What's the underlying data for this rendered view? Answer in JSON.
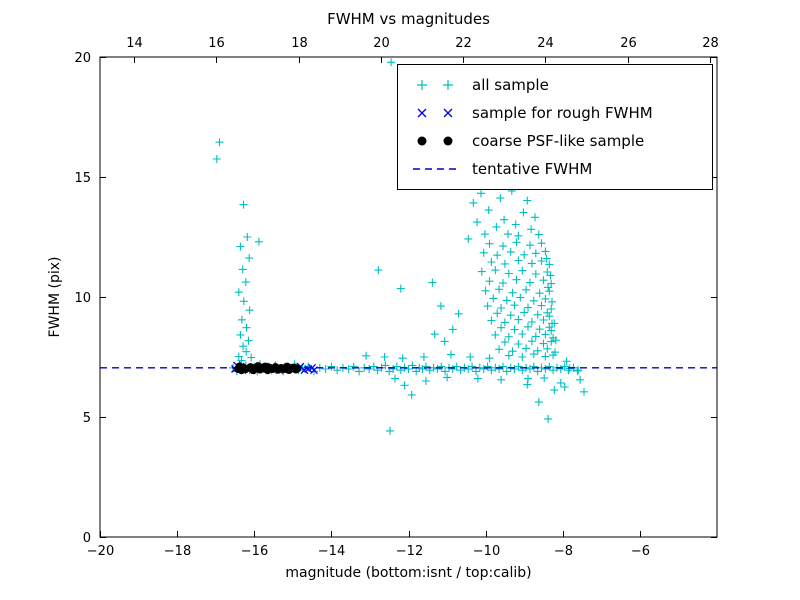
{
  "chart_data": {
    "type": "scatter",
    "title": "FWHM vs magnitudes",
    "xlabel": "magnitude (bottom:isnt / top:calib)",
    "ylabel": "FWHM (pix)",
    "xlim": [
      -20,
      -4
    ],
    "ylim": [
      0,
      20
    ],
    "top_xlim": [
      13.17,
      28.17
    ],
    "xticks": [
      -20,
      -18,
      -16,
      -14,
      -12,
      -10,
      -8,
      -6
    ],
    "xtick_labels": [
      "−20",
      "−18",
      "−16",
      "−14",
      "−12",
      "−10",
      "−8",
      "−6"
    ],
    "top_xticks": [
      14,
      16,
      18,
      20,
      22,
      24,
      26,
      28
    ],
    "yticks": [
      0,
      5,
      10,
      15,
      20
    ],
    "tentative_fwhm": 7.05,
    "grid": false,
    "legend_position": "upper right",
    "colors": {
      "all_sample": "#00bfbf",
      "rough": "#0000ee",
      "coarse": "#000000",
      "tentative": "#0000cc"
    },
    "legend": [
      {
        "marker": "plus",
        "label": "all sample"
      },
      {
        "marker": "cross",
        "label": "sample for rough FWHM"
      },
      {
        "marker": "dot",
        "label": "coarse PSF-like sample"
      },
      {
        "marker": "dash",
        "label": "tentative FWHM"
      }
    ],
    "series": {
      "all_sample": [
        [
          -16.9,
          16.45
        ],
        [
          -16.97,
          15.75
        ],
        [
          -16.28,
          13.85
        ],
        [
          -16.18,
          12.5
        ],
        [
          -16.36,
          12.1
        ],
        [
          -15.88,
          12.3
        ],
        [
          -16.13,
          11.62
        ],
        [
          -16.3,
          11.15
        ],
        [
          -16.22,
          10.62
        ],
        [
          -16.4,
          10.2
        ],
        [
          -16.27,
          9.82
        ],
        [
          -16.12,
          9.45
        ],
        [
          -16.32,
          9.05
        ],
        [
          -16.2,
          8.72
        ],
        [
          -16.36,
          8.42
        ],
        [
          -16.15,
          8.18
        ],
        [
          -16.29,
          7.95
        ],
        [
          -16.21,
          7.72
        ],
        [
          -16.4,
          7.52
        ],
        [
          -16.08,
          7.48
        ],
        [
          -16.33,
          7.35
        ],
        [
          -16.55,
          7.05
        ],
        [
          -16.45,
          6.9
        ],
        [
          -16.38,
          7.2
        ],
        [
          -16.3,
          7.0
        ],
        [
          -16.22,
          7.15
        ],
        [
          -16.12,
          6.95
        ],
        [
          -16.0,
          7.1
        ],
        [
          -15.92,
          6.9
        ],
        [
          -15.85,
          7.2
        ],
        [
          -15.75,
          7.0
        ],
        [
          -15.65,
          7.1
        ],
        [
          -15.55,
          6.95
        ],
        [
          -15.45,
          7.15
        ],
        [
          -15.35,
          7.0
        ],
        [
          -15.25,
          6.9
        ],
        [
          -15.15,
          7.1
        ],
        [
          -15.05,
          7.0
        ],
        [
          -14.95,
          7.2
        ],
        [
          -14.85,
          6.95
        ],
        [
          -14.75,
          7.05
        ],
        [
          -14.6,
          7.1
        ],
        [
          -14.45,
          6.9
        ],
        [
          -14.3,
          7.05
        ],
        [
          -14.15,
          7.0
        ],
        [
          -14.0,
          7.1
        ],
        [
          -13.85,
          6.95
        ],
        [
          -13.7,
          7.05
        ],
        [
          -13.55,
          7.0
        ],
        [
          -13.42,
          7.1
        ],
        [
          -13.28,
          6.9
        ],
        [
          -13.15,
          7.05
        ],
        [
          -13.02,
          7.0
        ],
        [
          -12.9,
          7.1
        ],
        [
          -12.8,
          6.95
        ],
        [
          -12.7,
          7.05
        ],
        [
          -12.6,
          7.15
        ],
        [
          -12.5,
          6.9
        ],
        [
          -12.4,
          7.0
        ],
        [
          -12.3,
          7.1
        ],
        [
          -12.2,
          6.95
        ],
        [
          -12.1,
          7.05
        ],
        [
          -12.0,
          7.0
        ],
        [
          -11.9,
          7.15
        ],
        [
          -11.8,
          6.9
        ],
        [
          -11.72,
          7.05
        ],
        [
          -11.64,
          7.0
        ],
        [
          -11.55,
          7.1
        ],
        [
          -11.45,
          6.95
        ],
        [
          -11.35,
          7.05
        ],
        [
          -11.25,
          7.0
        ],
        [
          -11.15,
          7.1
        ],
        [
          -11.05,
          6.9
        ],
        [
          -10.95,
          7.05
        ],
        [
          -10.85,
          7.0
        ],
        [
          -10.75,
          7.1
        ],
        [
          -10.65,
          6.95
        ],
        [
          -10.55,
          7.05
        ],
        [
          -10.45,
          7.0
        ],
        [
          -10.35,
          7.1
        ],
        [
          -10.25,
          6.9
        ],
        [
          -10.15,
          7.05
        ],
        [
          -10.05,
          7.0
        ],
        [
          -9.95,
          7.1
        ],
        [
          -9.85,
          6.95
        ],
        [
          -9.75,
          7.05
        ],
        [
          -9.65,
          7.0
        ],
        [
          -9.55,
          7.1
        ],
        [
          -9.45,
          6.9
        ],
        [
          -9.35,
          7.05
        ],
        [
          -9.25,
          7.0
        ],
        [
          -9.15,
          7.1
        ],
        [
          -9.05,
          6.95
        ],
        [
          -8.95,
          7.05
        ],
        [
          -8.85,
          7.0
        ],
        [
          -8.75,
          7.1
        ],
        [
          -8.65,
          6.9
        ],
        [
          -8.55,
          7.05
        ],
        [
          -8.45,
          7.0
        ],
        [
          -8.35,
          7.1
        ],
        [
          -8.25,
          6.95
        ],
        [
          -8.15,
          7.05
        ],
        [
          -8.05,
          7.0
        ],
        [
          -7.95,
          7.1
        ],
        [
          -7.85,
          6.95
        ],
        [
          -7.72,
          7.05
        ],
        [
          -7.6,
          6.95
        ],
        [
          -12.15,
          7.45
        ],
        [
          -11.6,
          7.5
        ],
        [
          -10.9,
          7.6
        ],
        [
          -10.4,
          7.5
        ],
        [
          -9.9,
          7.45
        ],
        [
          -12.35,
          6.6
        ],
        [
          -11.0,
          6.65
        ],
        [
          -10.2,
          6.6
        ],
        [
          -9.6,
          6.55
        ],
        [
          -8.9,
          6.6
        ],
        [
          -12.45,
          19.78
        ],
        [
          -12.78,
          11.12
        ],
        [
          -12.2,
          10.35
        ],
        [
          -12.48,
          4.42
        ],
        [
          -12.1,
          6.32
        ],
        [
          -11.92,
          5.92
        ],
        [
          -11.38,
          10.6
        ],
        [
          -11.16,
          9.62
        ],
        [
          -11.32,
          8.45
        ],
        [
          -11.06,
          8.15
        ],
        [
          -10.85,
          8.65
        ],
        [
          -10.7,
          9.3
        ],
        [
          -13.1,
          7.55
        ],
        [
          -12.62,
          7.5
        ],
        [
          -10.32,
          13.92
        ],
        [
          -10.12,
          14.32
        ],
        [
          -9.92,
          13.62
        ],
        [
          -9.82,
          14.62
        ],
        [
          -9.62,
          14.12
        ],
        [
          -9.52,
          13.22
        ],
        [
          -9.32,
          14.42
        ],
        [
          -9.22,
          13.02
        ],
        [
          -9.02,
          13.52
        ],
        [
          -8.82,
          12.82
        ],
        [
          -10.02,
          12.62
        ],
        [
          -9.72,
          12.92
        ],
        [
          -9.42,
          12.62
        ],
        [
          -8.92,
          14.02
        ],
        [
          -8.72,
          13.32
        ],
        [
          -10.22,
          13.12
        ],
        [
          -10.45,
          12.42
        ],
        [
          -9.15,
          12.55
        ],
        [
          -8.62,
          12.6
        ],
        [
          -9.55,
          14.75
        ],
        [
          -9.9,
          12.22
        ],
        [
          -9.55,
          12.12
        ],
        [
          -9.2,
          12.28
        ],
        [
          -8.85,
          12.16
        ],
        [
          -8.55,
          12.24
        ],
        [
          -10.05,
          11.84
        ],
        [
          -9.7,
          11.74
        ],
        [
          -9.35,
          11.88
        ],
        [
          -9.0,
          11.76
        ],
        [
          -8.7,
          11.82
        ],
        [
          -8.45,
          11.9
        ],
        [
          -9.85,
          11.46
        ],
        [
          -9.5,
          11.38
        ],
        [
          -9.15,
          11.52
        ],
        [
          -8.8,
          11.4
        ],
        [
          -8.55,
          11.5
        ],
        [
          -8.35,
          11.36
        ],
        [
          -10.1,
          11.06
        ],
        [
          -9.75,
          11.12
        ],
        [
          -9.4,
          10.98
        ],
        [
          -9.05,
          11.1
        ],
        [
          -8.7,
          10.96
        ],
        [
          -8.4,
          11.04
        ],
        [
          -9.9,
          10.66
        ],
        [
          -9.55,
          10.58
        ],
        [
          -9.2,
          10.72
        ],
        [
          -8.85,
          10.6
        ],
        [
          -8.5,
          10.7
        ],
        [
          -8.3,
          10.56
        ],
        [
          -10.0,
          10.26
        ],
        [
          -9.65,
          10.32
        ],
        [
          -9.3,
          10.18
        ],
        [
          -8.95,
          10.3
        ],
        [
          -8.6,
          10.16
        ],
        [
          -8.35,
          10.24
        ],
        [
          -9.8,
          9.94
        ],
        [
          -9.45,
          9.86
        ],
        [
          -9.1,
          9.98
        ],
        [
          -8.75,
          9.84
        ],
        [
          -8.45,
          9.92
        ],
        [
          -9.95,
          9.62
        ],
        [
          -9.6,
          9.54
        ],
        [
          -9.25,
          9.66
        ],
        [
          -8.9,
          9.56
        ],
        [
          -8.55,
          9.64
        ],
        [
          -8.3,
          9.5
        ],
        [
          -9.7,
          9.32
        ],
        [
          -9.35,
          9.24
        ],
        [
          -9.0,
          9.36
        ],
        [
          -8.65,
          9.26
        ],
        [
          -8.4,
          9.34
        ],
        [
          -9.85,
          9.02
        ],
        [
          -9.5,
          8.94
        ],
        [
          -9.15,
          9.06
        ],
        [
          -8.8,
          8.96
        ],
        [
          -8.5,
          9.04
        ],
        [
          -8.28,
          8.9
        ],
        [
          -9.6,
          8.72
        ],
        [
          -9.25,
          8.64
        ],
        [
          -8.9,
          8.76
        ],
        [
          -8.6,
          8.66
        ],
        [
          -8.35,
          8.74
        ],
        [
          -9.75,
          8.42
        ],
        [
          -9.4,
          8.34
        ],
        [
          -9.05,
          8.46
        ],
        [
          -8.7,
          8.36
        ],
        [
          -8.45,
          8.44
        ],
        [
          -8.25,
          8.3
        ],
        [
          -9.5,
          8.12
        ],
        [
          -9.15,
          8.04
        ],
        [
          -8.8,
          8.16
        ],
        [
          -8.5,
          8.06
        ],
        [
          -8.3,
          8.14
        ],
        [
          -9.65,
          7.82
        ],
        [
          -9.3,
          7.74
        ],
        [
          -8.95,
          7.86
        ],
        [
          -8.65,
          7.76
        ],
        [
          -8.4,
          7.84
        ],
        [
          -8.2,
          7.7
        ],
        [
          -9.4,
          7.56
        ],
        [
          -9.05,
          7.5
        ],
        [
          -8.75,
          7.62
        ],
        [
          -8.45,
          7.52
        ],
        [
          -8.25,
          7.58
        ],
        [
          -8.42,
          11.6
        ],
        [
          -8.32,
          10.9
        ],
        [
          -8.38,
          10.4
        ],
        [
          -8.28,
          9.8
        ],
        [
          -8.35,
          9.2
        ],
        [
          -8.3,
          8.6
        ],
        [
          -8.22,
          8.9
        ],
        [
          -8.18,
          8.2
        ],
        [
          -8.92,
          6.35
        ],
        [
          -8.62,
          5.62
        ],
        [
          -8.38,
          4.92
        ],
        [
          -8.22,
          6.12
        ],
        [
          -8.05,
          6.42
        ],
        [
          -8.48,
          6.62
        ],
        [
          -7.95,
          6.25
        ],
        [
          -11.55,
          6.5
        ],
        [
          -7.82,
          7.02
        ],
        [
          -7.62,
          6.92
        ],
        [
          -7.9,
          7.32
        ],
        [
          -7.55,
          6.55
        ],
        [
          -7.45,
          6.05
        ]
      ],
      "rough_fwhm": [
        [
          -16.5,
          7.0
        ],
        [
          -16.45,
          7.15
        ],
        [
          -16.35,
          7.1
        ],
        [
          -16.15,
          6.95
        ],
        [
          -15.95,
          7.05
        ],
        [
          -15.75,
          7.0
        ],
        [
          -15.55,
          7.1
        ],
        [
          -15.35,
          6.95
        ],
        [
          -15.15,
          7.05
        ],
        [
          -14.95,
          7.0
        ],
        [
          -14.8,
          7.1
        ],
        [
          -14.7,
          6.95
        ],
        [
          -14.6,
          7.0
        ],
        [
          -14.5,
          7.05
        ],
        [
          -14.45,
          6.95
        ]
      ],
      "coarse_psf": [
        [
          -16.42,
          7.0
        ],
        [
          -16.38,
          7.1
        ],
        [
          -16.33,
          6.95
        ],
        [
          -16.28,
          7.05
        ],
        [
          -16.22,
          7.0
        ],
        [
          -16.1,
          7.08
        ],
        [
          -16.02,
          6.95
        ],
        [
          -15.95,
          7.05
        ],
        [
          -15.9,
          7.12
        ],
        [
          -15.85,
          6.98
        ],
        [
          -15.78,
          7.03
        ],
        [
          -15.72,
          7.1
        ],
        [
          -15.65,
          6.95
        ],
        [
          -15.6,
          7.05
        ],
        [
          -15.52,
          7.0
        ],
        [
          -15.45,
          7.08
        ],
        [
          -15.38,
          6.97
        ],
        [
          -15.3,
          7.04
        ],
        [
          -15.22,
          7.0
        ],
        [
          -15.15,
          7.1
        ],
        [
          -15.1,
          6.96
        ],
        [
          -15.03,
          7.03
        ],
        [
          -14.97,
          7.06
        ],
        [
          -14.92,
          6.98
        ],
        [
          -14.88,
          7.02
        ]
      ]
    }
  }
}
